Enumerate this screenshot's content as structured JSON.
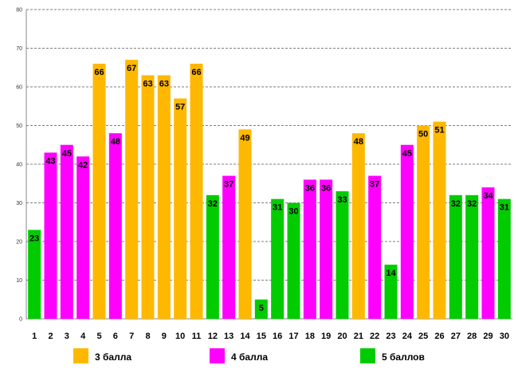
{
  "chart_data": {
    "type": "bar",
    "title": "",
    "xlabel": "",
    "ylabel": "",
    "ylim": [
      0,
      80
    ],
    "yticks": [
      0,
      10,
      20,
      30,
      40,
      50,
      60,
      70,
      80
    ],
    "grid": true,
    "legend_position": "bottom",
    "categories": [
      "1",
      "2",
      "3",
      "4",
      "5",
      "6",
      "7",
      "8",
      "9",
      "10",
      "11",
      "12",
      "13",
      "14",
      "15",
      "16",
      "17",
      "18",
      "19",
      "20",
      "21",
      "22",
      "23",
      "24",
      "25",
      "26",
      "27",
      "28",
      "29",
      "30"
    ],
    "values": [
      23,
      43,
      45,
      42,
      66,
      48,
      67,
      63,
      63,
      57,
      66,
      32,
      37,
      49,
      5,
      31,
      30,
      36,
      36,
      33,
      48,
      37,
      14,
      45,
      50,
      51,
      32,
      32,
      34,
      31
    ],
    "bar_group": [
      "5",
      "4",
      "4",
      "4",
      "3",
      "4",
      "3",
      "3",
      "3",
      "3",
      "3",
      "5",
      "4",
      "3",
      "5",
      "5",
      "5",
      "4",
      "4",
      "5",
      "3",
      "4",
      "5",
      "4",
      "3",
      "3",
      "5",
      "5",
      "4",
      "5"
    ],
    "groups": [
      {
        "key": "3",
        "name": "3 балла",
        "color": "#FFB800"
      },
      {
        "key": "4",
        "name": "4 балла",
        "color": "#FF00FF"
      },
      {
        "key": "5",
        "name": "5 баллов",
        "color": "#00CC00"
      }
    ]
  }
}
